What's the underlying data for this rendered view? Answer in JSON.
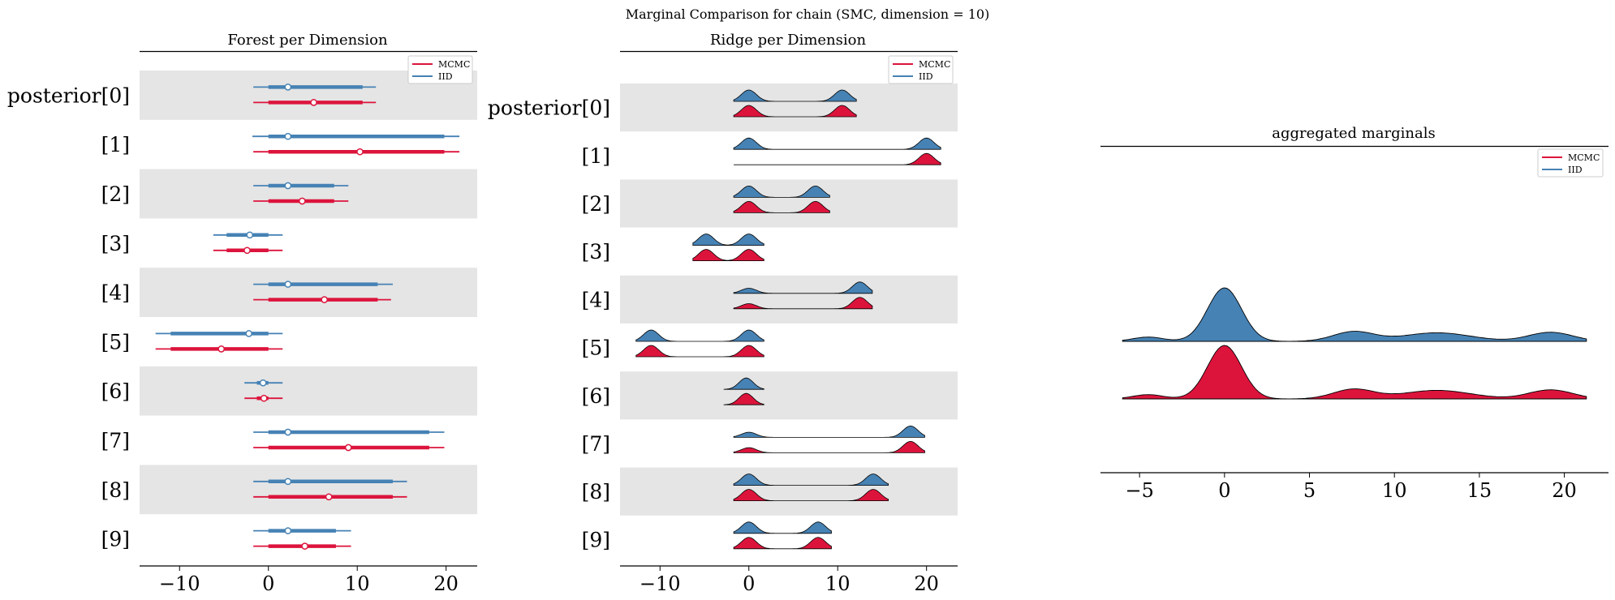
{
  "figure_title": "Marginal Comparison for chain (SMC, dimension = 10)",
  "colors": {
    "mcmc": "#dc143c",
    "iid": "#4682b4",
    "band": "#e5e5e5"
  },
  "legend": {
    "mcmc": "MCMC",
    "iid": "IID"
  },
  "chart_data": [
    {
      "type": "forest",
      "title": "Forest per Dimension",
      "xlim": [
        -14.5,
        23.5
      ],
      "xticks": [
        -10,
        0,
        10,
        20
      ],
      "xtick_labels": [
        "−10",
        "0",
        "10",
        "20"
      ],
      "labels": [
        "posterior[0]",
        "[1]",
        "[2]",
        "[3]",
        "[4]",
        "[5]",
        "[6]",
        "[7]",
        "[8]",
        "[9]"
      ],
      "legend_position": "top-right",
      "grid": false,
      "series": [
        {
          "name": "IID",
          "color": "#4682b4",
          "points": [
            {
              "hdi": [
                -1.7,
                12.1
              ],
              "iqr": [
                0.0,
                10.6
              ],
              "median": 2.2
            },
            {
              "hdi": [
                -1.8,
                21.5
              ],
              "iqr": [
                0.0,
                19.8
              ],
              "median": 2.2
            },
            {
              "hdi": [
                -1.7,
                9.0
              ],
              "iqr": [
                0.0,
                7.4
              ],
              "median": 2.2
            },
            {
              "hdi": [
                -6.2,
                1.6
              ],
              "iqr": [
                -4.7,
                0.0
              ],
              "median": -2.1
            },
            {
              "hdi": [
                -1.7,
                14.0
              ],
              "iqr": [
                0.0,
                12.3
              ],
              "median": 2.2
            },
            {
              "hdi": [
                -12.7,
                1.6
              ],
              "iqr": [
                -11.0,
                0.0
              ],
              "median": -2.2
            },
            {
              "hdi": [
                -2.7,
                1.6
              ],
              "iqr": [
                -1.3,
                0.0
              ],
              "median": -0.6
            },
            {
              "hdi": [
                -1.7,
                19.8
              ],
              "iqr": [
                0.0,
                18.1
              ],
              "median": 2.2
            },
            {
              "hdi": [
                -1.7,
                15.6
              ],
              "iqr": [
                0.0,
                14.0
              ],
              "median": 2.2
            },
            {
              "hdi": [
                -1.7,
                9.3
              ],
              "iqr": [
                0.0,
                7.6
              ],
              "median": 2.2
            }
          ]
        },
        {
          "name": "MCMC",
          "color": "#dc143c",
          "points": [
            {
              "hdi": [
                -1.7,
                12.1
              ],
              "iqr": [
                0.0,
                10.6
              ],
              "median": 5.1
            },
            {
              "hdi": [
                -1.7,
                21.5
              ],
              "iqr": [
                0.0,
                19.8
              ],
              "median": 10.3
            },
            {
              "hdi": [
                -1.7,
                9.0
              ],
              "iqr": [
                0.0,
                7.4
              ],
              "median": 3.8
            },
            {
              "hdi": [
                -6.2,
                1.6
              ],
              "iqr": [
                -4.7,
                0.0
              ],
              "median": -2.4
            },
            {
              "hdi": [
                -1.7,
                13.8
              ],
              "iqr": [
                0.0,
                12.3
              ],
              "median": 6.3
            },
            {
              "hdi": [
                -12.7,
                1.6
              ],
              "iqr": [
                -11.0,
                0.0
              ],
              "median": -5.3
            },
            {
              "hdi": [
                -2.7,
                1.6
              ],
              "iqr": [
                -1.3,
                0.0
              ],
              "median": -0.5
            },
            {
              "hdi": [
                -1.7,
                19.8
              ],
              "iqr": [
                0.0,
                18.1
              ],
              "median": 9.0
            },
            {
              "hdi": [
                -1.7,
                15.6
              ],
              "iqr": [
                0.0,
                14.0
              ],
              "median": 6.8
            },
            {
              "hdi": [
                -1.7,
                9.3
              ],
              "iqr": [
                0.0,
                7.6
              ],
              "median": 4.1
            }
          ]
        }
      ]
    },
    {
      "type": "ridge",
      "title": "Ridge per Dimension",
      "xlim": [
        -14.5,
        23.5
      ],
      "xticks": [
        -10,
        0,
        10,
        20
      ],
      "xtick_labels": [
        "−10",
        "0",
        "10",
        "20"
      ],
      "labels": [
        "posterior[0]",
        "[1]",
        "[2]",
        "[3]",
        "[4]",
        "[5]",
        "[6]",
        "[7]",
        "[8]",
        "[9]"
      ],
      "legend_position": "top-right",
      "grid": false,
      "dimensions": [
        {
          "support": [
            -1.7,
            12.1
          ],
          "iid_peaks": [
            [
              0,
              0.85,
              1.0
            ],
            [
              10.5,
              0.85,
              1.0
            ]
          ],
          "mcmc_peaks": [
            [
              0,
              0.85,
              1.0
            ],
            [
              10.5,
              0.85,
              1.0
            ]
          ]
        },
        {
          "support": [
            -1.7,
            21.6
          ],
          "iid_peaks": [
            [
              0,
              0.85,
              1.0
            ],
            [
              20.0,
              0.85,
              1.0
            ]
          ],
          "mcmc_peaks": [
            [
              0,
              0.85,
              0.0
            ],
            [
              20.0,
              0.85,
              1.0
            ]
          ]
        },
        {
          "support": [
            -1.7,
            9.1
          ],
          "iid_peaks": [
            [
              0,
              0.85,
              1.0
            ],
            [
              7.5,
              0.85,
              1.0
            ]
          ],
          "mcmc_peaks": [
            [
              0,
              0.85,
              1.0
            ],
            [
              7.5,
              0.85,
              1.0
            ]
          ]
        },
        {
          "support": [
            -6.3,
            1.7
          ],
          "iid_peaks": [
            [
              -4.8,
              0.85,
              1.0
            ],
            [
              0,
              0.85,
              1.0
            ]
          ],
          "mcmc_peaks": [
            [
              -4.8,
              0.85,
              1.0
            ],
            [
              0,
              0.85,
              1.0
            ]
          ]
        },
        {
          "support": [
            -1.7,
            13.9
          ],
          "iid_peaks": [
            [
              0,
              0.85,
              0.45
            ],
            [
              12.5,
              0.85,
              1.0
            ]
          ],
          "mcmc_peaks": [
            [
              0,
              0.85,
              0.45
            ],
            [
              12.5,
              0.85,
              1.0
            ]
          ]
        },
        {
          "support": [
            -12.7,
            1.7
          ],
          "iid_peaks": [
            [
              -11.0,
              0.85,
              1.0
            ],
            [
              0,
              0.85,
              1.0
            ]
          ],
          "mcmc_peaks": [
            [
              -11.0,
              0.85,
              1.0
            ],
            [
              0,
              0.85,
              1.0
            ]
          ]
        },
        {
          "support": [
            -2.8,
            1.7
          ],
          "iid_peaks": [
            [
              -0.3,
              0.8,
              1.0
            ]
          ],
          "mcmc_peaks": [
            [
              -0.3,
              0.8,
              1.0
            ]
          ]
        },
        {
          "support": [
            -1.7,
            19.8
          ],
          "iid_peaks": [
            [
              0,
              0.85,
              0.45
            ],
            [
              18.2,
              0.85,
              1.0
            ]
          ],
          "mcmc_peaks": [
            [
              0,
              0.85,
              0.45
            ],
            [
              18.2,
              0.85,
              1.0
            ]
          ]
        },
        {
          "support": [
            -1.7,
            15.7
          ],
          "iid_peaks": [
            [
              0,
              0.85,
              1.0
            ],
            [
              14.0,
              0.85,
              1.0
            ]
          ],
          "mcmc_peaks": [
            [
              0,
              0.85,
              1.0
            ],
            [
              14.0,
              0.85,
              1.0
            ]
          ]
        },
        {
          "support": [
            -1.7,
            9.3
          ],
          "iid_peaks": [
            [
              0,
              0.85,
              1.0
            ],
            [
              7.8,
              0.85,
              1.0
            ]
          ],
          "mcmc_peaks": [
            [
              0,
              0.85,
              1.0
            ],
            [
              7.8,
              0.85,
              1.0
            ]
          ]
        }
      ]
    },
    {
      "type": "ridge",
      "title": "aggregated marginals",
      "xlim": [
        -7.3,
        22.6
      ],
      "xticks": [
        -5,
        0,
        5,
        10,
        15,
        20
      ],
      "xtick_labels": [
        "−5",
        "0",
        "5",
        "10",
        "15",
        "20"
      ],
      "legend_position": "top-right",
      "grid": false,
      "support": [
        -6.0,
        21.3
      ],
      "series": [
        {
          "name": "IID",
          "color": "#4682b4",
          "peaks": [
            [
              0,
              1.0,
              1.0
            ],
            [
              -4.5,
              0.9,
              0.08
            ],
            [
              7.6,
              1.2,
              0.18
            ],
            [
              12.5,
              2.0,
              0.16
            ],
            [
              19.2,
              1.3,
              0.17
            ]
          ]
        },
        {
          "name": "MCMC",
          "color": "#dc143c",
          "peaks": [
            [
              0,
              1.0,
              1.0
            ],
            [
              -4.5,
              0.9,
              0.08
            ],
            [
              7.6,
              1.2,
              0.18
            ],
            [
              12.5,
              2.0,
              0.16
            ],
            [
              19.2,
              1.3,
              0.17
            ]
          ]
        }
      ]
    }
  ]
}
